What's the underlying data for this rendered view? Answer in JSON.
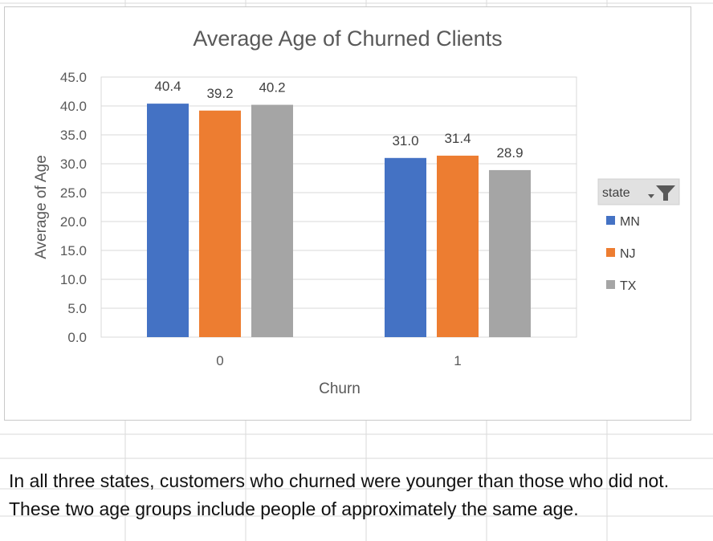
{
  "chart_data": {
    "type": "bar",
    "title": "Average Age of Churned Clients",
    "xlabel": "Churn",
    "ylabel": "Average of Age",
    "categories": [
      "0",
      "1"
    ],
    "series": [
      {
        "name": "MN",
        "values": [
          40.4,
          31.0
        ],
        "color": "#4472c4"
      },
      {
        "name": "NJ",
        "values": [
          39.2,
          31.4
        ],
        "color": "#ed7d31"
      },
      {
        "name": "TX",
        "values": [
          40.2,
          28.9
        ],
        "color": "#a5a5a5"
      }
    ],
    "data_labels": [
      [
        "40.4",
        "31.0"
      ],
      [
        "39.2",
        "31.4"
      ],
      [
        "40.2",
        "28.9"
      ]
    ],
    "y_ticks": [
      "0.0",
      "5.0",
      "10.0",
      "15.0",
      "20.0",
      "25.0",
      "30.0",
      "35.0",
      "40.0",
      "45.0"
    ],
    "ylim": [
      0,
      45
    ],
    "grid": true,
    "legend": {
      "title": "state",
      "placement": "right",
      "filter_icon": "filter-dropdown-icon"
    }
  },
  "note": {
    "line1": "In all three states, customers who churned were younger than those who did not.",
    "line2": "These two age groups  include people of approximately the same age."
  }
}
